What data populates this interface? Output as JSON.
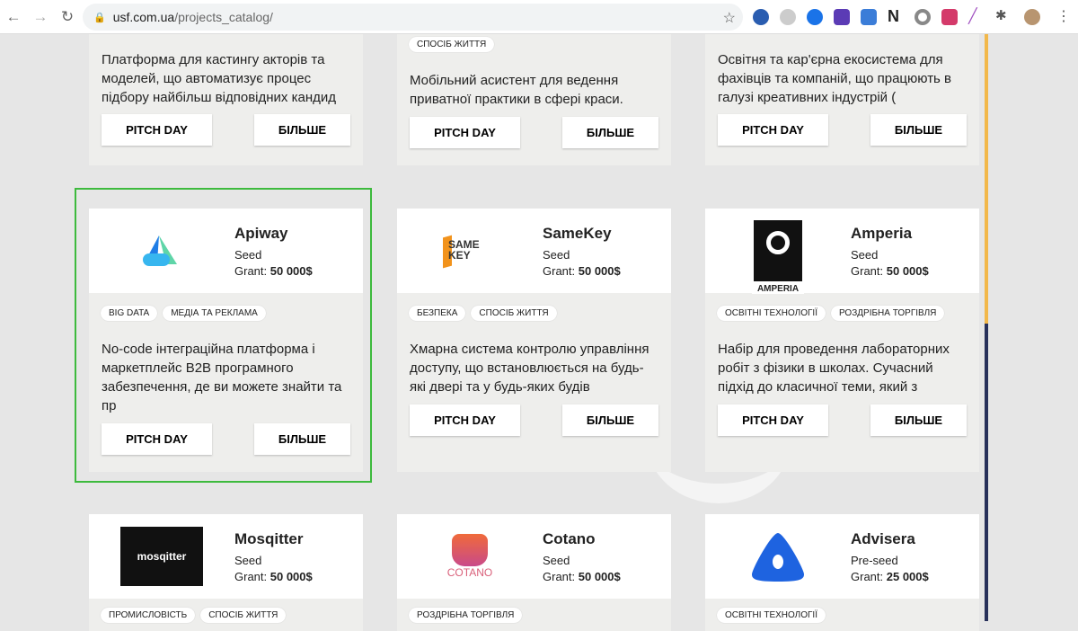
{
  "browser": {
    "url_host": "usf.com.ua",
    "url_path": "/projects_catalog/"
  },
  "buttons": {
    "pitch": "PITCH DAY",
    "more": "БІЛЬШЕ"
  },
  "top_row": [
    {
      "desc": "Платформа для кастингу акторів та моделей, що автоматизує процес підбору найбільш відповідних кандид"
    },
    {
      "tags": [
        "СПОСІБ ЖИТТЯ"
      ],
      "desc": "Мобільний асистент для ведення приватної практики в сфері краси."
    },
    {
      "desc": "Освітня та кар'єрна екосистема для фахівців та компаній, що працюють в галузі креативних індустрій ("
    }
  ],
  "row2": [
    {
      "name": "Apiway",
      "stage": "Seed",
      "grant_label": "Grant:",
      "grant": "50 000$",
      "tags": [
        "BIG DATA",
        "МЕДІА ТА РЕКЛАМА"
      ],
      "desc": "No-code інтеграційна платформа і маркетплейс B2B програмного забезпечення, де ви можете знайти та пр"
    },
    {
      "name": "SameKey",
      "stage": "Seed",
      "grant_label": "Grant:",
      "grant": "50 000$",
      "tags": [
        "БЕЗПЕКА",
        "СПОСІБ ЖИТТЯ"
      ],
      "desc": "Хмарна система контролю управління доступу, що встановлюється на будь-які двері та у будь-яких будів",
      "logo_text": "SAME KEY"
    },
    {
      "name": "Amperia",
      "stage": "Seed",
      "grant_label": "Grant:",
      "grant": "50 000$",
      "tags": [
        "ОСВІТНІ ТЕХНОЛОГІЇ",
        "РОЗДРІБНА ТОРГІВЛЯ"
      ],
      "desc": "Набір для проведення лабораторних робіт з фізики в школах. Сучасний підхід до класичної теми, який з",
      "logo_text": "AMPERIA"
    }
  ],
  "row3": [
    {
      "name": "Mosqitter",
      "stage": "Seed",
      "grant_label": "Grant:",
      "grant": "50 000$",
      "tags": [
        "ПРОМИСЛОВІСТЬ",
        "СПОСІБ ЖИТТЯ"
      ],
      "logo_text": "mosqitter"
    },
    {
      "name": "Cotano",
      "stage": "Seed",
      "grant_label": "Grant:",
      "grant": "50 000$",
      "tags": [
        "РОЗДРІБНА ТОРГІВЛЯ"
      ],
      "logo_text": "COTANO"
    },
    {
      "name": "Advisera",
      "stage": "Pre-seed",
      "grant_label": "Grant:",
      "grant": "25 000$",
      "tags": [
        "ОСВІТНІ ТЕХНОЛОГІЇ"
      ]
    }
  ],
  "colors": {
    "selected_border": "#3dba3d",
    "scroll_top": "#f2b84b",
    "scroll_bottom": "#27305a"
  }
}
